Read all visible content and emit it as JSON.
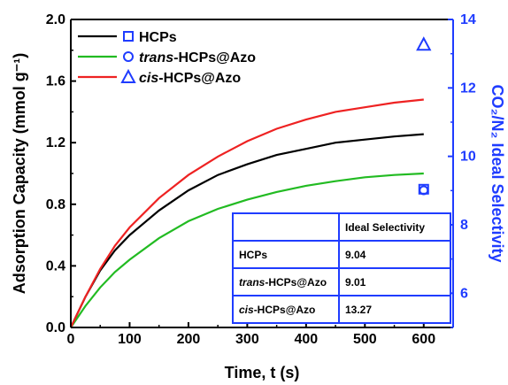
{
  "chart_data": {
    "type": "line",
    "xlabel": "Time, t (s)",
    "ylabel": "Adsorption Capacity (mmol g⁻¹)",
    "y2label": "CO₂/N₂ Ideal Selectivity",
    "xlim": [
      0,
      650
    ],
    "ylim": [
      0,
      2.0
    ],
    "y2lim": [
      5,
      14
    ],
    "xticks": [
      "0",
      "100",
      "200",
      "300",
      "400",
      "500",
      "600"
    ],
    "yticks": [
      "0.0",
      "0.4",
      "0.8",
      "1.2",
      "1.6",
      "2.0"
    ],
    "y2ticks": [
      "6",
      "8",
      "10",
      "12",
      "14"
    ],
    "grid": false,
    "legend_position": "top-left",
    "series": [
      {
        "name": "HCPs",
        "name_parts": [
          {
            "text": "HCPs",
            "italic": false
          }
        ],
        "color": "#000000",
        "x": [
          0,
          25,
          50,
          75,
          100,
          150,
          200,
          250,
          300,
          350,
          400,
          450,
          500,
          550,
          600
        ],
        "y": [
          0,
          0.2,
          0.37,
          0.5,
          0.6,
          0.76,
          0.89,
          0.99,
          1.06,
          1.12,
          1.16,
          1.2,
          1.22,
          1.24,
          1.255
        ],
        "selectivity_x": 600,
        "selectivity": 9.04,
        "marker": "square"
      },
      {
        "name": "trans-HCPs@Azo",
        "name_parts": [
          {
            "text": "trans",
            "italic": true
          },
          {
            "text": "-HCPs@Azo",
            "italic": false
          }
        ],
        "color": "#22bb22",
        "x": [
          0,
          25,
          50,
          75,
          100,
          150,
          200,
          250,
          300,
          350,
          400,
          450,
          500,
          550,
          600
        ],
        "y": [
          0,
          0.14,
          0.26,
          0.36,
          0.44,
          0.58,
          0.69,
          0.77,
          0.83,
          0.88,
          0.92,
          0.95,
          0.975,
          0.99,
          1.0
        ],
        "selectivity_x": 600,
        "selectivity": 9.01,
        "marker": "circle"
      },
      {
        "name": "cis-HCPs@Azo",
        "name_parts": [
          {
            "text": "cis",
            "italic": true
          },
          {
            "text": "-HCPs@Azo",
            "italic": false
          }
        ],
        "color": "#ee2222",
        "x": [
          0,
          25,
          50,
          75,
          100,
          150,
          200,
          250,
          300,
          350,
          400,
          450,
          500,
          550,
          600
        ],
        "y": [
          0,
          0.2,
          0.38,
          0.53,
          0.65,
          0.84,
          0.99,
          1.11,
          1.21,
          1.29,
          1.35,
          1.4,
          1.43,
          1.46,
          1.48
        ],
        "selectivity_x": 600,
        "selectivity": 13.27,
        "marker": "triangle"
      }
    ],
    "table": {
      "header": [
        "",
        "Ideal Selectivity"
      ],
      "rows": [
        {
          "name_parts": [
            {
              "text": "HCPs",
              "italic": false
            }
          ],
          "value": "9.04"
        },
        {
          "name_parts": [
            {
              "text": "trans",
              "italic": true
            },
            {
              "text": "-HCPs@Azo",
              "italic": false
            }
          ],
          "value": "9.01"
        },
        {
          "name_parts": [
            {
              "text": "cis",
              "italic": true
            },
            {
              "text": "-HCPs@Azo",
              "italic": false
            }
          ],
          "value": "13.27"
        }
      ]
    },
    "colors": {
      "axis": "#000000",
      "right_axis": "#1f3cff",
      "marker": "#1f3cff"
    }
  }
}
